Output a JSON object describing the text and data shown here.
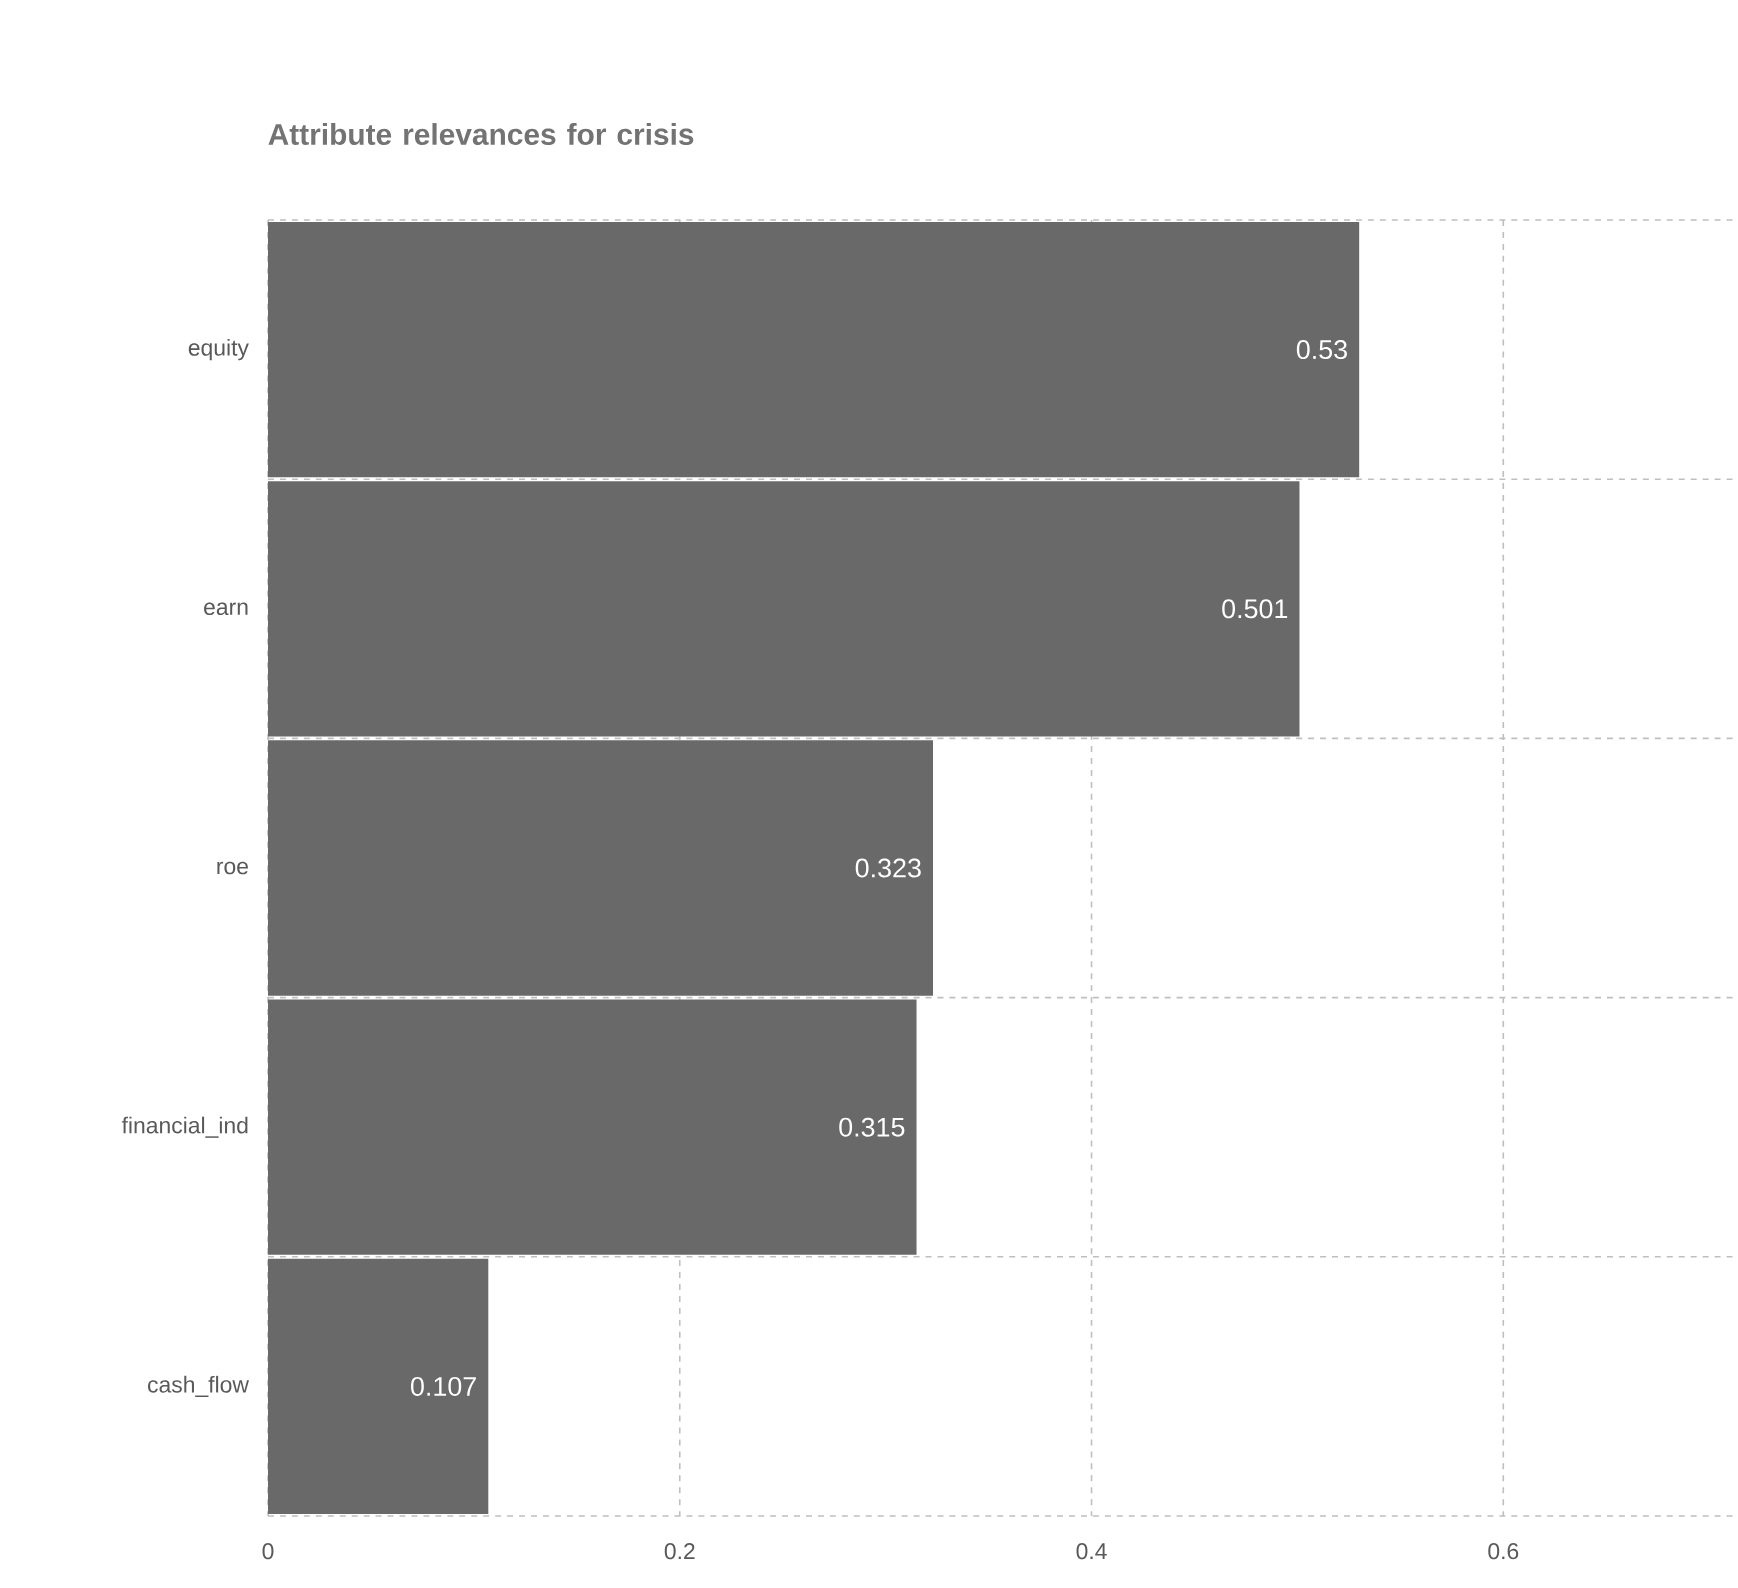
{
  "chart_data": {
    "type": "bar",
    "orientation": "horizontal",
    "title": "Attribute relevances for crisis",
    "categories": [
      "equity",
      "earn",
      "roe",
      "financial_ind",
      "cash_flow"
    ],
    "values": [
      0.53,
      0.501,
      0.323,
      0.315,
      0.107
    ],
    "color": "#696969",
    "xlim": [
      0,
      0.714
    ],
    "xticks": [
      0,
      0.2,
      0.4,
      0.6
    ],
    "grid": true,
    "data_labels": true
  }
}
